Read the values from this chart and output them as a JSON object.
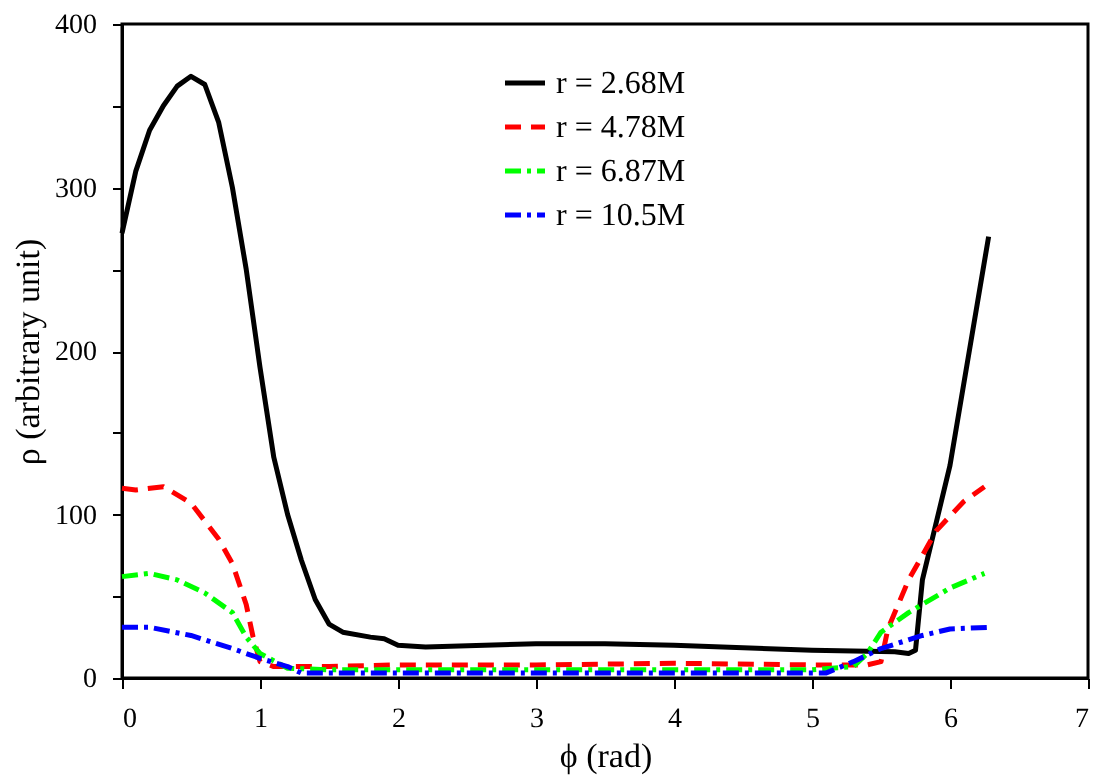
{
  "chart_data": {
    "type": "line",
    "xlabel": "ϕ (rad)",
    "ylabel": "ρ (arbitrary unit)",
    "xlim": [
      0,
      7
    ],
    "xticks": [
      0,
      1,
      2,
      3,
      4,
      5,
      6,
      7
    ],
    "ylim": [
      0,
      400
    ],
    "yticks": [
      0,
      {
        "value": 50,
        "label": null
      },
      100,
      {
        "value": 150,
        "label": null
      },
      200,
      {
        "value": 250,
        "label": null
      },
      300,
      {
        "value": 350,
        "label": null
      },
      400
    ],
    "grid": false,
    "legend": "top",
    "marker": "none",
    "series": [
      {
        "name": "r = 2.68M",
        "color": "#000000",
        "line_style": "solid",
        "x": [
          0,
          0.1,
          0.2,
          0.3,
          0.4,
          0.5,
          0.6,
          0.7,
          0.8,
          0.9,
          1.0,
          1.1,
          1.2,
          1.3,
          1.4,
          1.5,
          1.6,
          1.8,
          1.9,
          2.0,
          2.2,
          3.0,
          3.5,
          4.0,
          5.0,
          5.6,
          5.7,
          5.75,
          5.8,
          6.0,
          6.2,
          6.28
        ],
        "values": [
          272,
          310,
          335,
          350,
          362,
          368,
          363,
          340,
          300,
          250,
          190,
          135,
          100,
          72,
          48,
          33,
          28,
          25,
          24,
          20,
          19,
          21,
          21,
          20,
          17,
          16,
          15,
          17,
          60,
          130,
          230,
          270
        ]
      },
      {
        "name": "r = 4.78M",
        "color": "#ff0000",
        "line_style": "dashed",
        "x": [
          0,
          0.1,
          0.3,
          0.5,
          0.7,
          0.8,
          0.9,
          0.95,
          1.0,
          1.1,
          1.5,
          2.0,
          3.0,
          4.0,
          5.0,
          5.4,
          5.5,
          5.55,
          5.7,
          5.9,
          6.1,
          6.25
        ],
        "values": [
          116,
          115,
          117,
          107,
          85,
          70,
          45,
          25,
          10,
          7,
          7,
          8,
          8,
          9,
          8,
          8,
          10,
          30,
          60,
          90,
          108,
          117
        ]
      },
      {
        "name": "r = 6.87M",
        "color": "#00ff00",
        "line_style": "dashdot",
        "x": [
          0,
          0.2,
          0.4,
          0.6,
          0.8,
          0.9,
          1.0,
          1.2,
          1.5,
          3.0,
          5.0,
          5.3,
          5.4,
          5.5,
          5.7,
          6.0,
          6.25
        ],
        "values": [
          62,
          64,
          60,
          52,
          40,
          25,
          15,
          6,
          5,
          5,
          5,
          7,
          15,
          28,
          40,
          55,
          64
        ]
      },
      {
        "name": "r = 10.5M",
        "color": "#0000ff",
        "line_style": "dashdot",
        "x": [
          0,
          0.2,
          0.5,
          0.8,
          1.0,
          1.2,
          1.3,
          2.0,
          4.0,
          5.1,
          5.3,
          5.5,
          5.8,
          6.0,
          6.28
        ],
        "values": [
          31,
          31,
          26,
          18,
          12,
          7,
          3,
          3,
          3,
          3,
          10,
          18,
          26,
          30,
          31
        ]
      }
    ]
  }
}
